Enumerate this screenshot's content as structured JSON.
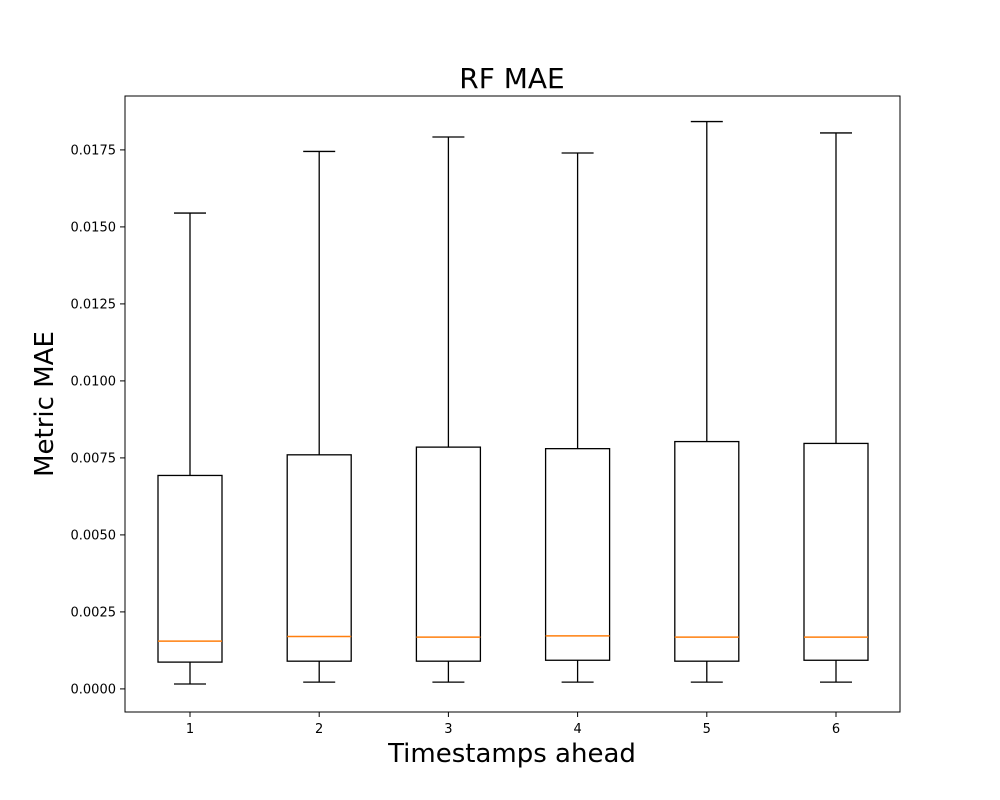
{
  "chart_data": {
    "type": "boxplot",
    "title": "RF MAE",
    "xlabel": "Timestamps ahead",
    "ylabel": "Metric MAE",
    "categories": [
      "1",
      "2",
      "3",
      "4",
      "5",
      "6"
    ],
    "boxes": [
      {
        "whisker_low": 0.00016,
        "q1": 0.00087,
        "median": 0.00155,
        "q3": 0.00693,
        "whisker_high": 0.01545
      },
      {
        "whisker_low": 0.00022,
        "q1": 0.0009,
        "median": 0.0017,
        "q3": 0.0076,
        "whisker_high": 0.01745
      },
      {
        "whisker_low": 0.00022,
        "q1": 0.0009,
        "median": 0.00168,
        "q3": 0.00785,
        "whisker_high": 0.01792
      },
      {
        "whisker_low": 0.00022,
        "q1": 0.00093,
        "median": 0.00172,
        "q3": 0.0078,
        "whisker_high": 0.0174
      },
      {
        "whisker_low": 0.00022,
        "q1": 0.0009,
        "median": 0.00168,
        "q3": 0.00803,
        "whisker_high": 0.01842
      },
      {
        "whisker_low": 0.00022,
        "q1": 0.00093,
        "median": 0.00168,
        "q3": 0.00797,
        "whisker_high": 0.01805
      }
    ],
    "yticks": [
      0.0,
      0.0025,
      0.005,
      0.0075,
      0.01,
      0.0125,
      0.015,
      0.0175
    ],
    "ytick_labels": [
      "0.0000",
      "0.0025",
      "0.0050",
      "0.0075",
      "0.0100",
      "0.0125",
      "0.0150",
      "0.0175"
    ],
    "ylim": [
      -0.00075,
      0.01925
    ],
    "median_color": "#ff7f0e",
    "box_color": "#000000",
    "grid": false
  }
}
